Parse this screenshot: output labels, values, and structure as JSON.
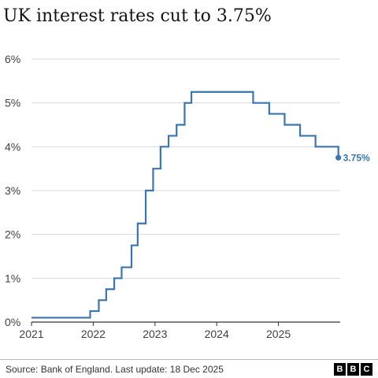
{
  "title": "UK interest rates cut to 3.75%",
  "source": "Source: Bank of England. Last update: 18 Dec 2025",
  "logo": [
    "B",
    "B",
    "C"
  ],
  "colors": {
    "line": "#3a75b0",
    "grid": "#d9d9d9",
    "axis": "#333333"
  },
  "chart_data": {
    "type": "line",
    "step": true,
    "title": "UK interest rates cut to 3.75%",
    "xlabel": "",
    "ylabel": "",
    "ylim": [
      0,
      6
    ],
    "yticks": [
      "0%",
      "1%",
      "2%",
      "3%",
      "4%",
      "5%",
      "6%"
    ],
    "ytick_values": [
      0,
      1,
      2,
      3,
      4,
      5,
      6
    ],
    "xticks": [
      "2021",
      "2022",
      "2023",
      "2024",
      "2025"
    ],
    "xtick_values": [
      2021,
      2022,
      2023,
      2024,
      2025
    ],
    "xlim": [
      2021,
      2026
    ],
    "grid": true,
    "end_label": "3.75%",
    "series": [
      {
        "x": [
          2021.0,
          2021.95,
          2022.09,
          2022.21,
          2022.34,
          2022.46,
          2022.62,
          2022.72,
          2022.85,
          2022.97,
          2023.09,
          2023.22,
          2023.35,
          2023.48,
          2023.59,
          2024.59,
          2024.85,
          2025.1,
          2025.35,
          2025.6,
          2025.97
        ],
        "values": [
          0.1,
          0.25,
          0.5,
          0.75,
          1.0,
          1.25,
          1.75,
          2.25,
          3.0,
          3.5,
          4.0,
          4.25,
          4.5,
          5.0,
          5.25,
          5.0,
          4.75,
          4.5,
          4.25,
          4.0,
          3.75
        ]
      }
    ]
  }
}
